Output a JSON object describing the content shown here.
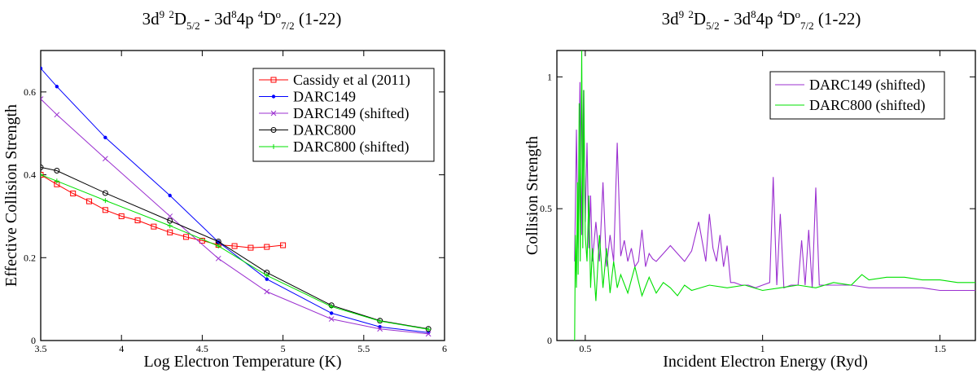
{
  "chart_data": [
    {
      "type": "line",
      "title": {
        "base": "3d",
        "exp1": "9",
        "term1_pre": "2",
        "term1": "D",
        "term1_sub": "5/2",
        "sep": " - 3d",
        "exp2": "8",
        "mid": "4p ",
        "term2_pre": "4",
        "term2": "D",
        "term2_sup": "o",
        "term2_sub": "7/2",
        "trans": " (1-22)"
      },
      "xlabel": "Log Electron Temperature (K)",
      "ylabel": "Effective Collision Strength",
      "xlim": [
        3.5,
        6
      ],
      "ylim": [
        0,
        0.7
      ],
      "xticks": [
        "3.5",
        "4",
        "4.5",
        "5",
        "5.5",
        "6"
      ],
      "yticks": [
        "0",
        "0.2",
        "0.4",
        "0.6"
      ],
      "legend_position": "top-right",
      "series": [
        {
          "name": "Cassidy et al (2011)",
          "color": "#ff0000",
          "marker": "square",
          "x": [
            3.5,
            3.6,
            3.7,
            3.8,
            3.9,
            4.0,
            4.1,
            4.2,
            4.3,
            4.4,
            4.5,
            4.6,
            4.7,
            4.8,
            4.9,
            5.0
          ],
          "y": [
            0.4,
            0.377,
            0.355,
            0.336,
            0.315,
            0.3,
            0.29,
            0.275,
            0.261,
            0.25,
            0.241,
            0.231,
            0.228,
            0.224,
            0.226,
            0.23
          ]
        },
        {
          "name": "DARC149",
          "color": "#0000ff",
          "marker": "dot",
          "x": [
            3.5,
            3.6,
            3.9,
            4.3,
            4.6,
            4.9,
            5.3,
            5.6,
            5.9
          ],
          "y": [
            0.657,
            0.613,
            0.49,
            0.35,
            0.238,
            0.148,
            0.066,
            0.033,
            0.019
          ]
        },
        {
          "name": "DARC149 (shifted)",
          "color": "#9b30d0",
          "marker": "x",
          "x": [
            3.5,
            3.6,
            3.9,
            4.3,
            4.6,
            4.9,
            5.3,
            5.6,
            5.9
          ],
          "y": [
            0.583,
            0.545,
            0.439,
            0.3,
            0.198,
            0.118,
            0.052,
            0.028,
            0.016
          ]
        },
        {
          "name": "DARC800",
          "color": "#000000",
          "marker": "circle",
          "x": [
            3.5,
            3.6,
            3.9,
            4.3,
            4.6,
            4.9,
            5.3,
            5.6,
            5.9
          ],
          "y": [
            0.418,
            0.41,
            0.356,
            0.289,
            0.239,
            0.164,
            0.085,
            0.048,
            0.028
          ]
        },
        {
          "name": "DARC800 (shifted)",
          "color": "#00e000",
          "marker": "plus",
          "x": [
            3.5,
            3.6,
            3.9,
            4.3,
            4.6,
            4.9,
            5.3,
            5.6,
            5.9
          ],
          "y": [
            0.4,
            0.385,
            0.338,
            0.277,
            0.228,
            0.157,
            0.082,
            0.047,
            0.027
          ]
        }
      ]
    },
    {
      "type": "line",
      "title": {
        "base": "3d",
        "exp1": "9",
        "term1_pre": "2",
        "term1": "D",
        "term1_sub": "5/2",
        "sep": " - 3d",
        "exp2": "8",
        "mid": "4p ",
        "term2_pre": "4",
        "term2": "D",
        "term2_sup": "o",
        "term2_sub": "7/2",
        "trans": " (1-22)"
      },
      "xlabel": "Incident Electron Energy (Ryd)",
      "ylabel": "Collision Strength",
      "xlim": [
        0.42,
        1.6
      ],
      "ylim": [
        0,
        1.1
      ],
      "xticks": [
        "0.5",
        "1",
        "1.5"
      ],
      "xtick_values": [
        0.5,
        1.0,
        1.5
      ],
      "yticks": [
        "0",
        "0.5",
        "1"
      ],
      "ytick_values": [
        0,
        0.5,
        1.0
      ],
      "legend_position": "top-right",
      "series": [
        {
          "name": "DARC149 (shifted)",
          "color": "#9b30d0",
          "x": [
            0.47,
            0.475,
            0.48,
            0.485,
            0.49,
            0.495,
            0.5,
            0.505,
            0.51,
            0.515,
            0.52,
            0.53,
            0.54,
            0.55,
            0.56,
            0.57,
            0.58,
            0.59,
            0.6,
            0.61,
            0.62,
            0.63,
            0.64,
            0.65,
            0.66,
            0.67,
            0.68,
            0.69,
            0.7,
            0.72,
            0.74,
            0.76,
            0.78,
            0.8,
            0.82,
            0.84,
            0.85,
            0.86,
            0.87,
            0.88,
            0.89,
            0.9,
            0.91,
            0.92,
            0.94,
            0.96,
            0.98,
            1.0,
            1.02,
            1.03,
            1.04,
            1.05,
            1.06,
            1.08,
            1.1,
            1.11,
            1.12,
            1.13,
            1.14,
            1.15,
            1.16,
            1.17,
            1.2,
            1.25,
            1.3,
            1.35,
            1.4,
            1.45,
            1.5,
            1.55,
            1.6
          ],
          "y": [
            0.3,
            0.8,
            0.35,
            0.98,
            0.4,
            0.95,
            0.45,
            0.75,
            0.35,
            0.55,
            0.3,
            0.45,
            0.3,
            0.6,
            0.28,
            0.4,
            0.3,
            0.75,
            0.32,
            0.38,
            0.3,
            0.35,
            0.28,
            0.3,
            0.42,
            0.28,
            0.33,
            0.31,
            0.3,
            0.33,
            0.36,
            0.33,
            0.3,
            0.34,
            0.45,
            0.3,
            0.48,
            0.35,
            0.3,
            0.4,
            0.28,
            0.36,
            0.22,
            0.22,
            0.21,
            0.21,
            0.2,
            0.21,
            0.22,
            0.62,
            0.21,
            0.48,
            0.2,
            0.21,
            0.21,
            0.38,
            0.21,
            0.42,
            0.2,
            0.58,
            0.21,
            0.21,
            0.21,
            0.21,
            0.2,
            0.2,
            0.2,
            0.2,
            0.19,
            0.19,
            0.19
          ]
        },
        {
          "name": "DARC800 (shifted)",
          "color": "#00e000",
          "x": [
            0.47,
            0.472,
            0.475,
            0.478,
            0.48,
            0.483,
            0.486,
            0.49,
            0.493,
            0.496,
            0.5,
            0.505,
            0.51,
            0.515,
            0.52,
            0.53,
            0.54,
            0.55,
            0.56,
            0.57,
            0.58,
            0.59,
            0.6,
            0.62,
            0.64,
            0.66,
            0.68,
            0.7,
            0.72,
            0.74,
            0.76,
            0.78,
            0.8,
            0.85,
            0.9,
            0.95,
            1.0,
            1.05,
            1.1,
            1.15,
            1.2,
            1.25,
            1.28,
            1.3,
            1.35,
            1.4,
            1.45,
            1.5,
            1.55,
            1.6
          ],
          "y": [
            0.0,
            0.4,
            0.2,
            0.6,
            0.25,
            0.9,
            0.3,
            1.1,
            0.35,
            0.95,
            0.4,
            0.3,
            0.55,
            0.2,
            0.35,
            0.15,
            0.4,
            0.2,
            0.35,
            0.18,
            0.3,
            0.2,
            0.25,
            0.18,
            0.28,
            0.17,
            0.24,
            0.18,
            0.22,
            0.2,
            0.17,
            0.21,
            0.19,
            0.21,
            0.2,
            0.21,
            0.19,
            0.2,
            0.21,
            0.2,
            0.22,
            0.21,
            0.25,
            0.23,
            0.24,
            0.24,
            0.23,
            0.23,
            0.22,
            0.22
          ]
        }
      ]
    }
  ]
}
